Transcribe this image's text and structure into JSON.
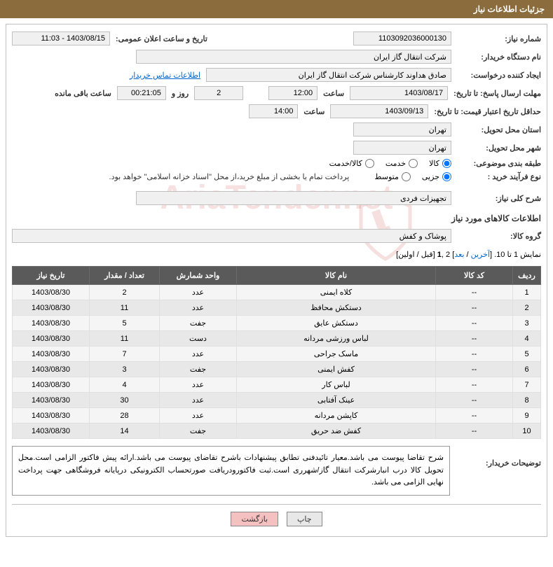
{
  "header": {
    "title": "جزئیات اطلاعات نیاز"
  },
  "form": {
    "need_number_label": "شماره نیاز:",
    "need_number": "1103092036000130",
    "announce_date_label": "تاریخ و ساعت اعلان عمومی:",
    "announce_date": "1403/08/15 - 11:03",
    "buyer_org_label": "نام دستگاه خریدار:",
    "buyer_org": "شرکت انتقال گاز ایران",
    "requester_label": "ایجاد کننده درخواست:",
    "requester": "صادق  هداوند کارشناس شرکت انتقال گاز ایران",
    "contact_link": "اطلاعات تماس خریدار",
    "response_deadline_label": "مهلت ارسال پاسخ: تا تاریخ:",
    "response_date": "1403/08/17",
    "time_label": "ساعت",
    "response_time": "12:00",
    "days_left": "2",
    "days_and_label": "روز و",
    "hours_left": "00:21:05",
    "remaining_label": "ساعت باقی مانده",
    "price_validity_label": "حداقل تاریخ اعتبار قیمت: تا تاریخ:",
    "price_validity_date": "1403/09/13",
    "price_validity_time": "14:00",
    "province_label": "استان محل تحویل:",
    "province": "تهران",
    "city_label": "شهر محل تحویل:",
    "city": "تهران",
    "subject_class_label": "طبقه بندی موضوعی:",
    "radio_goods": "کالا",
    "radio_service": "خدمت",
    "radio_both": "کالا/خدمت",
    "purchase_type_label": "نوع فرآیند خرید :",
    "radio_partial": "جزیی",
    "radio_medium": "متوسط",
    "purchase_note": "پرداخت تمام یا بخشی از مبلغ خرید،از محل \"اسناد خزانه اسلامی\" خواهد بود.",
    "general_desc_label": "شرح کلی نیاز:",
    "general_desc": "تجهیزات فردی",
    "goods_section_title": "اطلاعات کالاهای مورد نیاز",
    "goods_group_label": "گروه کالا:",
    "goods_group": "پوشاک و کفش",
    "buyer_notes_label": "توضیحات خریدار:",
    "buyer_notes": "شرح تقاضا پیوست می باشد.معیار تائیدفنی تطابق پیشنهادات باشرح تقاضای پیوست می باشد.ارائه پیش فاکتور الزامی است.محل تحویل کالا درب انبارشرکت انتقال گاز/شهرری است.ثبت فاکتورودریافت صورتحساب الکترونیکی درپایانه فروشگاهی جهت پرداخت نهایی الزامی می باشد."
  },
  "pagination": {
    "text_prefix": "نمایش 1 تا 10. [",
    "last": "آخرین",
    "sep1": " / ",
    "next": "بعد",
    "sep2": "] 2 ,",
    "one": "1",
    "sep3": " [قبل / اولین]"
  },
  "table": {
    "headers": [
      "ردیف",
      "کد کالا",
      "نام کالا",
      "واحد شمارش",
      "تعداد / مقدار",
      "تاریخ نیاز"
    ],
    "rows": [
      [
        "1",
        "--",
        "کلاه ایمنی",
        "عدد",
        "2",
        "1403/08/30"
      ],
      [
        "2",
        "--",
        "دستکش محافظ",
        "عدد",
        "11",
        "1403/08/30"
      ],
      [
        "3",
        "--",
        "دستکش عایق",
        "جفت",
        "5",
        "1403/08/30"
      ],
      [
        "4",
        "--",
        "لباس ورزشی مردانه",
        "دست",
        "11",
        "1403/08/30"
      ],
      [
        "5",
        "--",
        "ماسک جراحی",
        "عدد",
        "7",
        "1403/08/30"
      ],
      [
        "6",
        "--",
        "کفش ایمنی",
        "جفت",
        "3",
        "1403/08/30"
      ],
      [
        "7",
        "--",
        "لباس کار",
        "عدد",
        "4",
        "1403/08/30"
      ],
      [
        "8",
        "--",
        "عینک آفتابی",
        "عدد",
        "30",
        "1403/08/30"
      ],
      [
        "9",
        "--",
        "کاپشن مردانه",
        "عدد",
        "28",
        "1403/08/30"
      ],
      [
        "10",
        "--",
        "کفش ضد حریق",
        "جفت",
        "14",
        "1403/08/30"
      ]
    ]
  },
  "buttons": {
    "print": "چاپ",
    "back": "بازگشت"
  },
  "watermark": "AriaTender.net"
}
